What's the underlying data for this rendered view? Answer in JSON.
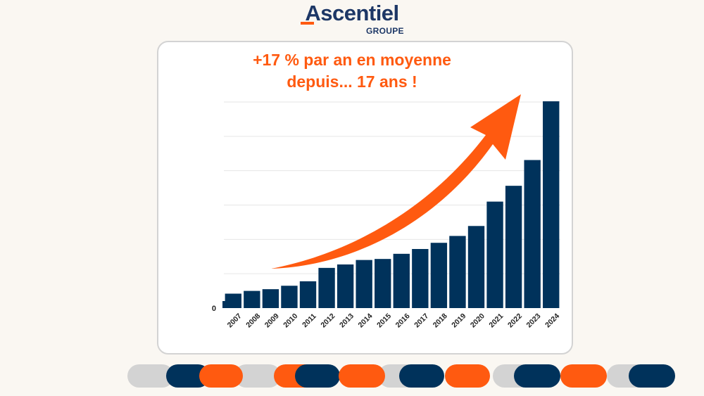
{
  "logo": {
    "name": "Ascentiel",
    "sub": "GROUPE"
  },
  "headline": {
    "line1": "+17 % par an en moyenne",
    "line2": "depuis... 17 ans !"
  },
  "colors": {
    "navy": "#00325b",
    "orange": "#ff5a10",
    "grey": "#d3d3d3",
    "grid": "#e6e6e6"
  },
  "arrow_icon": "trend-up-arrow-icon",
  "chart_data": {
    "type": "bar",
    "title": "",
    "xlabel": "",
    "ylabel": "",
    "categories": [
      "2007",
      "2008",
      "2009",
      "2010",
      "2011",
      "2012",
      "2013",
      "2014",
      "2015",
      "2016",
      "2017",
      "2018",
      "2019",
      "2020",
      "2021",
      "2022",
      "2023",
      "2024"
    ],
    "values": [
      4.2,
      5.0,
      5.5,
      6.5,
      7.8,
      11.7,
      12.7,
      14.0,
      14.3,
      15.8,
      17.2,
      19.0,
      21.0,
      23.9,
      31.0,
      35.6,
      43.1,
      60.2
    ],
    "ylim": [
      0,
      60
    ],
    "yticks": [
      "0"
    ],
    "grid": true,
    "legend": "none"
  },
  "footer_pills": [
    "grey",
    "navy",
    "orange",
    "grey",
    "orange",
    "navy",
    "orange",
    "grey",
    "navy",
    "orange",
    "grey",
    "navy",
    "orange",
    "grey",
    "navy"
  ]
}
